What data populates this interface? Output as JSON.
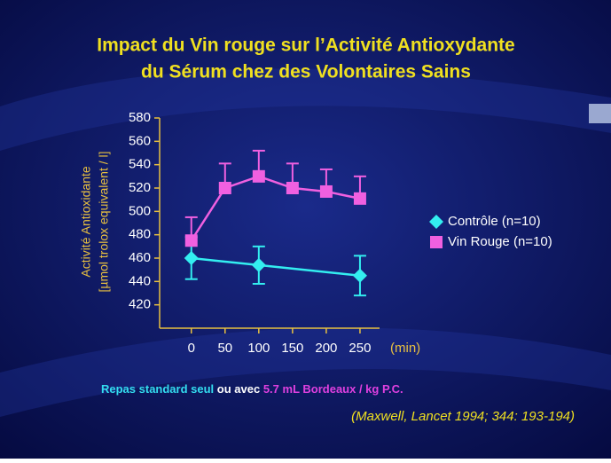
{
  "chart_data": {
    "type": "line",
    "title": [
      "Impact du Vin rouge sur  l’Activité Antioxydante",
      "du Sérum chez des Volontaires Sains"
    ],
    "y_label": [
      "Activité Antioxidante",
      "[µmol trolox equivalent / l]"
    ],
    "x_label": "(min)",
    "caption": [
      "Repas standard seul",
      "ou avec",
      "5.7 mL Bordeaux / kg P.C."
    ],
    "citation": "(Maxwell, Lancet 1994; 344: 193-194)",
    "xlim": [
      -47,
      279
    ],
    "xticks": [
      0,
      50,
      100,
      150,
      200,
      250
    ],
    "ylim": [
      400,
      580
    ],
    "yticks": [
      420,
      440,
      460,
      480,
      500,
      520,
      540,
      560,
      580
    ],
    "legend": "right",
    "series": [
      {
        "name": "Contrôle (n=10)",
        "color": "#33eef0",
        "marker": "diamond",
        "error_bars": "both",
        "x": [
          0,
          100,
          250
        ],
        "values": [
          460,
          454,
          445
        ],
        "errors": [
          18,
          16,
          17
        ]
      },
      {
        "name": "Vin Rouge (n=10)",
        "color": "#f060e0",
        "marker": "square",
        "error_bars": "up",
        "x": [
          0,
          50,
          100,
          150,
          200,
          250
        ],
        "values": [
          475,
          520,
          530,
          520,
          517,
          511
        ],
        "errors": [
          20,
          21,
          22,
          21,
          19,
          19
        ]
      }
    ]
  }
}
